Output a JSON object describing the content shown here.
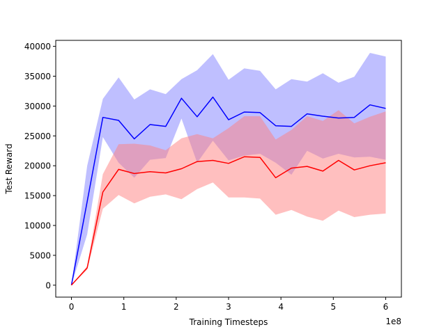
{
  "chart_data": {
    "type": "line",
    "title": "",
    "xlabel": "Training Timesteps",
    "ylabel": "Test Reward",
    "x_offset_label": "1e8",
    "xlim": [
      -0.3,
      6.3
    ],
    "ylim": [
      -2000,
      41000
    ],
    "x_ticks": [
      0,
      1,
      2,
      3,
      4,
      5,
      6
    ],
    "y_ticks": [
      0,
      5000,
      10000,
      15000,
      20000,
      25000,
      30000,
      35000,
      40000
    ],
    "grid": false,
    "legend": "none",
    "x": [
      0,
      0.3,
      0.6,
      0.9,
      1.2,
      1.5,
      1.8,
      2.1,
      2.4,
      2.7,
      3.0,
      3.3,
      3.6,
      3.9,
      4.2,
      4.5,
      4.8,
      5.1,
      5.4,
      5.7,
      6.0
    ],
    "series": [
      {
        "color": "#0000ff",
        "band_color": "#8080ff",
        "mean": [
          0,
          14000,
          28100,
          27600,
          24500,
          26900,
          26600,
          31300,
          28200,
          31500,
          27700,
          29000,
          28900,
          26700,
          26600,
          28700,
          28300,
          28000,
          28100,
          30200,
          29600
        ],
        "upper": [
          0,
          20000,
          31200,
          34800,
          31100,
          32800,
          32000,
          34500,
          36000,
          38700,
          34400,
          36300,
          35900,
          32800,
          34500,
          34100,
          35500,
          33900,
          34900,
          38900,
          38300
        ],
        "lower": [
          0,
          8500,
          24800,
          20500,
          18000,
          21000,
          21300,
          27900,
          20500,
          24200,
          20900,
          21700,
          22000,
          20500,
          18500,
          22500,
          21200,
          22000,
          21400,
          21500,
          21000
        ]
      },
      {
        "color": "#ff0000",
        "band_color": "#ff8080",
        "mean": [
          0,
          2900,
          15600,
          19400,
          18700,
          19000,
          18800,
          19500,
          20700,
          20900,
          20400,
          21500,
          21400,
          18000,
          19600,
          19900,
          19100,
          20900,
          19300,
          20000,
          20500
        ],
        "upper": [
          0,
          3200,
          18600,
          23600,
          23700,
          23400,
          22600,
          24600,
          25300,
          24600,
          26300,
          28300,
          28300,
          24400,
          26000,
          28300,
          27500,
          29300,
          27100,
          28200,
          29100
        ],
        "lower": [
          0,
          2600,
          12800,
          15100,
          13700,
          14800,
          15200,
          14400,
          16100,
          17200,
          14700,
          14700,
          14500,
          11800,
          12600,
          11500,
          10800,
          12500,
          11400,
          11800,
          12000
        ]
      }
    ]
  }
}
